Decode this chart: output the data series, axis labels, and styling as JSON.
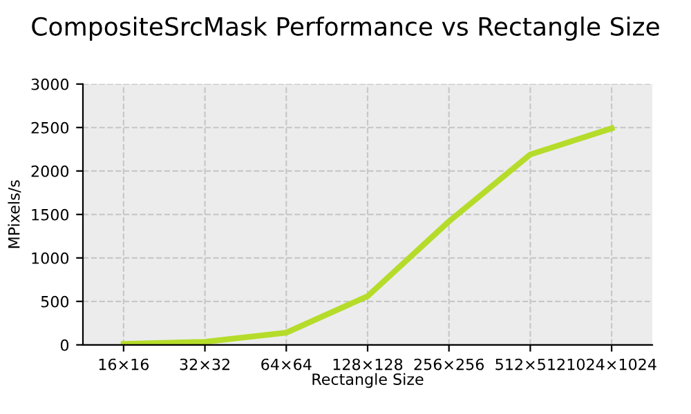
{
  "chart_data": {
    "type": "line",
    "title": "CompositeSrcMask Performance vs Rectangle Size",
    "xlabel": "Rectangle Size",
    "ylabel": "MPixels/s",
    "categories": [
      "16×16",
      "32×32",
      "64×64",
      "128×128",
      "256×256",
      "512×512",
      "1024×1024"
    ],
    "series": [
      {
        "color": "#b5dc2a",
        "values": [
          10,
          35,
          140,
          560,
          1420,
          2190,
          2490
        ]
      }
    ],
    "ylim": [
      0,
      3000
    ],
    "yticks": [
      0,
      500,
      1000,
      1500,
      2000,
      2500,
      3000
    ],
    "grid": true,
    "marker": "none",
    "line_style": "solid"
  }
}
